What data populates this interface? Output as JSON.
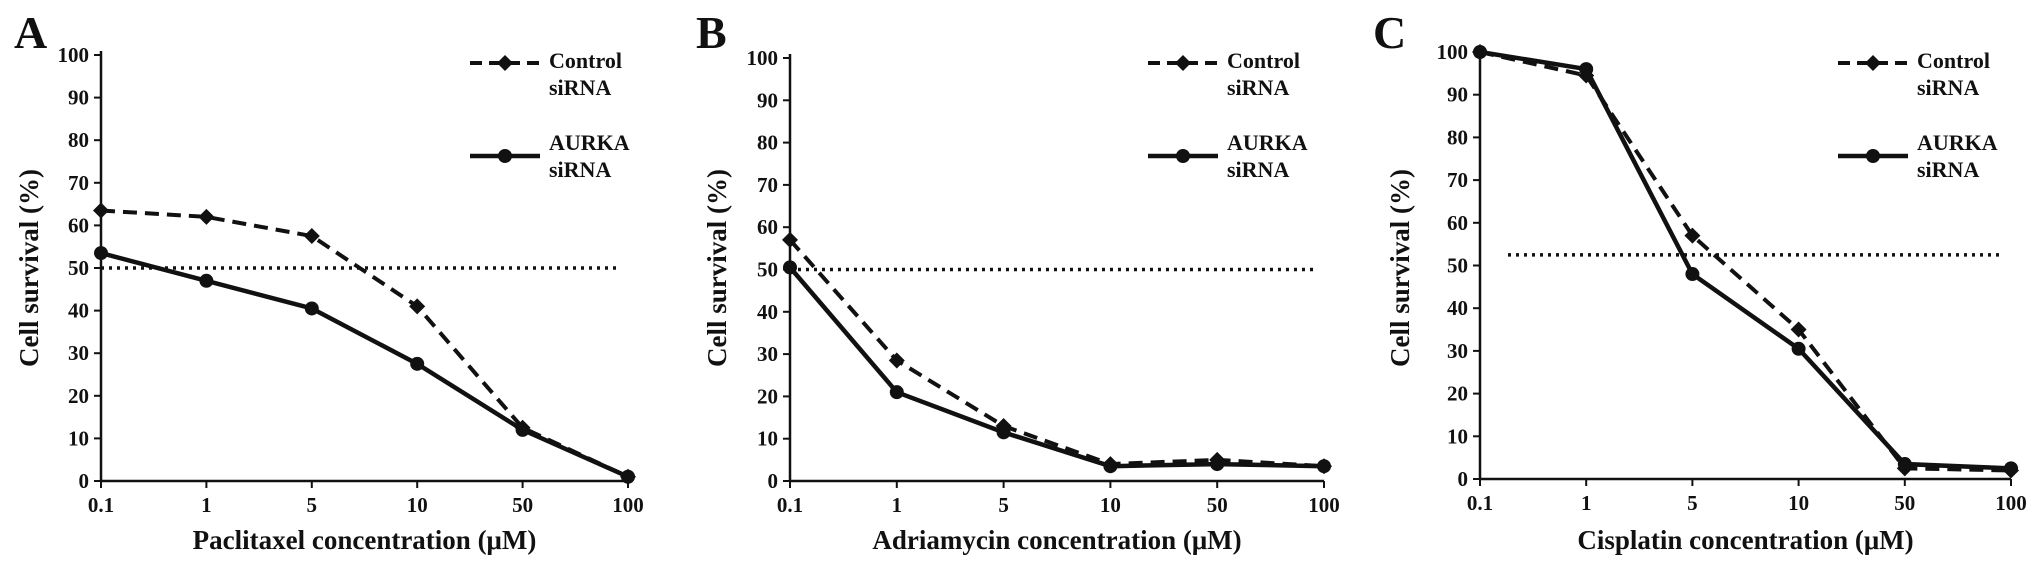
{
  "figure": {
    "x_categories": [
      "0.1",
      "1",
      "5",
      "10",
      "50",
      "100"
    ],
    "y_ticks": [
      "0",
      "10",
      "20",
      "30",
      "40",
      "50",
      "60",
      "70",
      "80",
      "90",
      "100"
    ],
    "y_label": "Cell survival (%)",
    "legend": {
      "control": [
        "Control",
        "siRNA"
      ],
      "aurka": [
        "AURKA",
        "siRNA"
      ]
    }
  },
  "chart_data": [
    {
      "panel": "A",
      "type": "line",
      "categories": [
        "0.1",
        "1",
        "5",
        "10",
        "50",
        "100"
      ],
      "xlabel": "Paclitaxel concentration (μM)",
      "ylabel": "Cell survival (%)",
      "ylim": [
        0,
        100
      ],
      "reference_line": 50,
      "series": [
        {
          "name": "Control siRNA",
          "style": "dashed",
          "values": [
            63.5,
            62,
            57.5,
            41,
            12.5,
            1
          ]
        },
        {
          "name": "AURKA siRNA",
          "style": "solid",
          "values": [
            53.5,
            47,
            40.5,
            27.5,
            12,
            1
          ]
        }
      ],
      "legend_position": "top-right",
      "grid": false
    },
    {
      "panel": "B",
      "type": "line",
      "categories": [
        "0.1",
        "1",
        "5",
        "10",
        "50",
        "100"
      ],
      "xlabel": "Adriamycin concentration (μM)",
      "ylabel": "Cell survival (%)",
      "ylim": [
        0,
        100
      ],
      "reference_line": 50,
      "series": [
        {
          "name": "Control siRNA",
          "style": "dashed",
          "values": [
            57,
            28.5,
            13,
            4,
            5,
            3.5
          ]
        },
        {
          "name": "AURKA siRNA",
          "style": "solid",
          "values": [
            50.5,
            21,
            11.5,
            3.5,
            4,
            3.5
          ]
        }
      ],
      "legend_position": "top-right",
      "grid": false
    },
    {
      "panel": "C",
      "type": "line",
      "categories": [
        "0.1",
        "1",
        "5",
        "10",
        "50",
        "100"
      ],
      "xlabel": "Cisplatin concentration (μM)",
      "ylabel": "Cell survival (%)",
      "ylim": [
        0,
        100
      ],
      "reference_line": 52.5,
      "series": [
        {
          "name": "Control siRNA",
          "style": "dashed",
          "values": [
            100,
            94.5,
            57,
            35,
            2.5,
            2
          ]
        },
        {
          "name": "AURKA siRNA",
          "style": "solid",
          "values": [
            100,
            96,
            48,
            30.5,
            3.5,
            2.5
          ]
        }
      ],
      "legend_position": "top-right",
      "grid": false
    }
  ]
}
